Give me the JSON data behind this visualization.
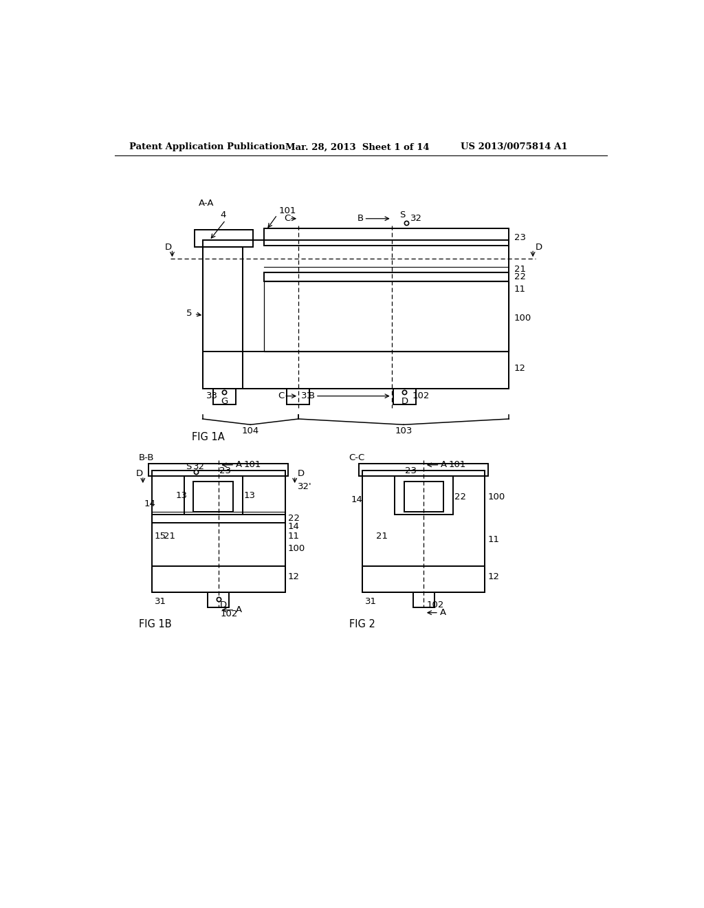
{
  "bg_color": "#ffffff",
  "header_left": "Patent Application Publication",
  "header_mid": "Mar. 28, 2013  Sheet 1 of 14",
  "header_right": "US 2013/0075814 A1"
}
